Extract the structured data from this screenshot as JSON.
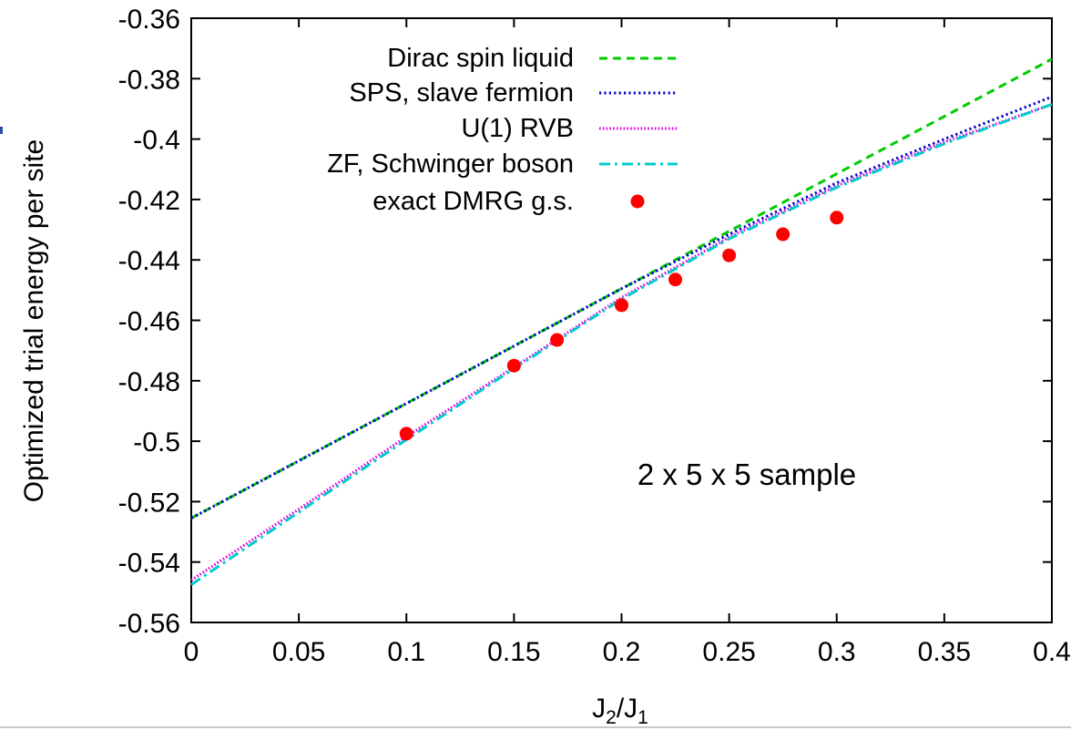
{
  "chart_data": {
    "type": "line",
    "title": "",
    "xlabel": "J2/J1",
    "xlabel_parts": {
      "base": "J",
      "sub1": "2",
      "slash": "/",
      "base2": "J",
      "sub2": "1"
    },
    "ylabel": "Optimized trial energy per site",
    "xlim": [
      0,
      0.4
    ],
    "ylim": [
      -0.56,
      -0.36
    ],
    "xticks": [
      0,
      0.05,
      0.1,
      0.15,
      0.2,
      0.25,
      0.3,
      0.35,
      0.4
    ],
    "xtick_labels": [
      "0",
      "0.05",
      "0.1",
      "0.15",
      "0.2",
      "0.25",
      "0.3",
      "0.35",
      "0.4"
    ],
    "yticks": [
      -0.56,
      -0.54,
      -0.52,
      -0.5,
      -0.48,
      -0.46,
      -0.44,
      -0.42,
      -0.4,
      -0.38,
      -0.36
    ],
    "ytick_labels": [
      "-0.56",
      "-0.54",
      "-0.52",
      "-0.5",
      "-0.48",
      "-0.46",
      "-0.44",
      "-0.42",
      "-0.4",
      "-0.38",
      "-0.36"
    ],
    "grid": false,
    "legend_position": "top-right",
    "annotation": "2 x 5 x 5 sample",
    "series": [
      {
        "name": "Dirac spin liquid",
        "color": "#00cc00",
        "style": "dashed",
        "x": [
          0,
          0.4
        ],
        "y": [
          -0.5255,
          -0.3735
        ]
      },
      {
        "name": "SPS, slave fermion",
        "color": "#0000cc",
        "style": "dotted",
        "x": [
          0,
          0.05,
          0.1,
          0.15,
          0.2,
          0.25,
          0.3,
          0.35,
          0.4
        ],
        "y": [
          -0.5255,
          -0.5065,
          -0.4875,
          -0.4685,
          -0.4495,
          -0.4315,
          -0.4145,
          -0.4,
          -0.386
        ]
      },
      {
        "name": "U(1) RVB",
        "color": "#e000e0",
        "style": "dotted-fine",
        "x": [
          0,
          0.05,
          0.1,
          0.15,
          0.2,
          0.25,
          0.3,
          0.35,
          0.4
        ],
        "y": [
          -0.546,
          -0.5225,
          -0.4985,
          -0.4755,
          -0.4525,
          -0.4325,
          -0.4155,
          -0.401,
          -0.3885
        ]
      },
      {
        "name": "ZF, Schwinger boson",
        "color": "#00cccc",
        "style": "dash-dot",
        "x": [
          0,
          0.05,
          0.1,
          0.15,
          0.2,
          0.25,
          0.3,
          0.35,
          0.4
        ],
        "y": [
          -0.5475,
          -0.5235,
          -0.4995,
          -0.476,
          -0.453,
          -0.433,
          -0.416,
          -0.4015,
          -0.3885
        ]
      },
      {
        "name": "exact DMRG g.s.",
        "color": "#ff0000",
        "style": "points",
        "x": [
          0.1,
          0.15,
          0.17,
          0.2,
          0.225,
          0.25,
          0.275,
          0.3
        ],
        "y": [
          -0.4975,
          -0.475,
          -0.4665,
          -0.455,
          -0.4465,
          -0.4385,
          -0.4315,
          -0.426
        ]
      }
    ]
  }
}
